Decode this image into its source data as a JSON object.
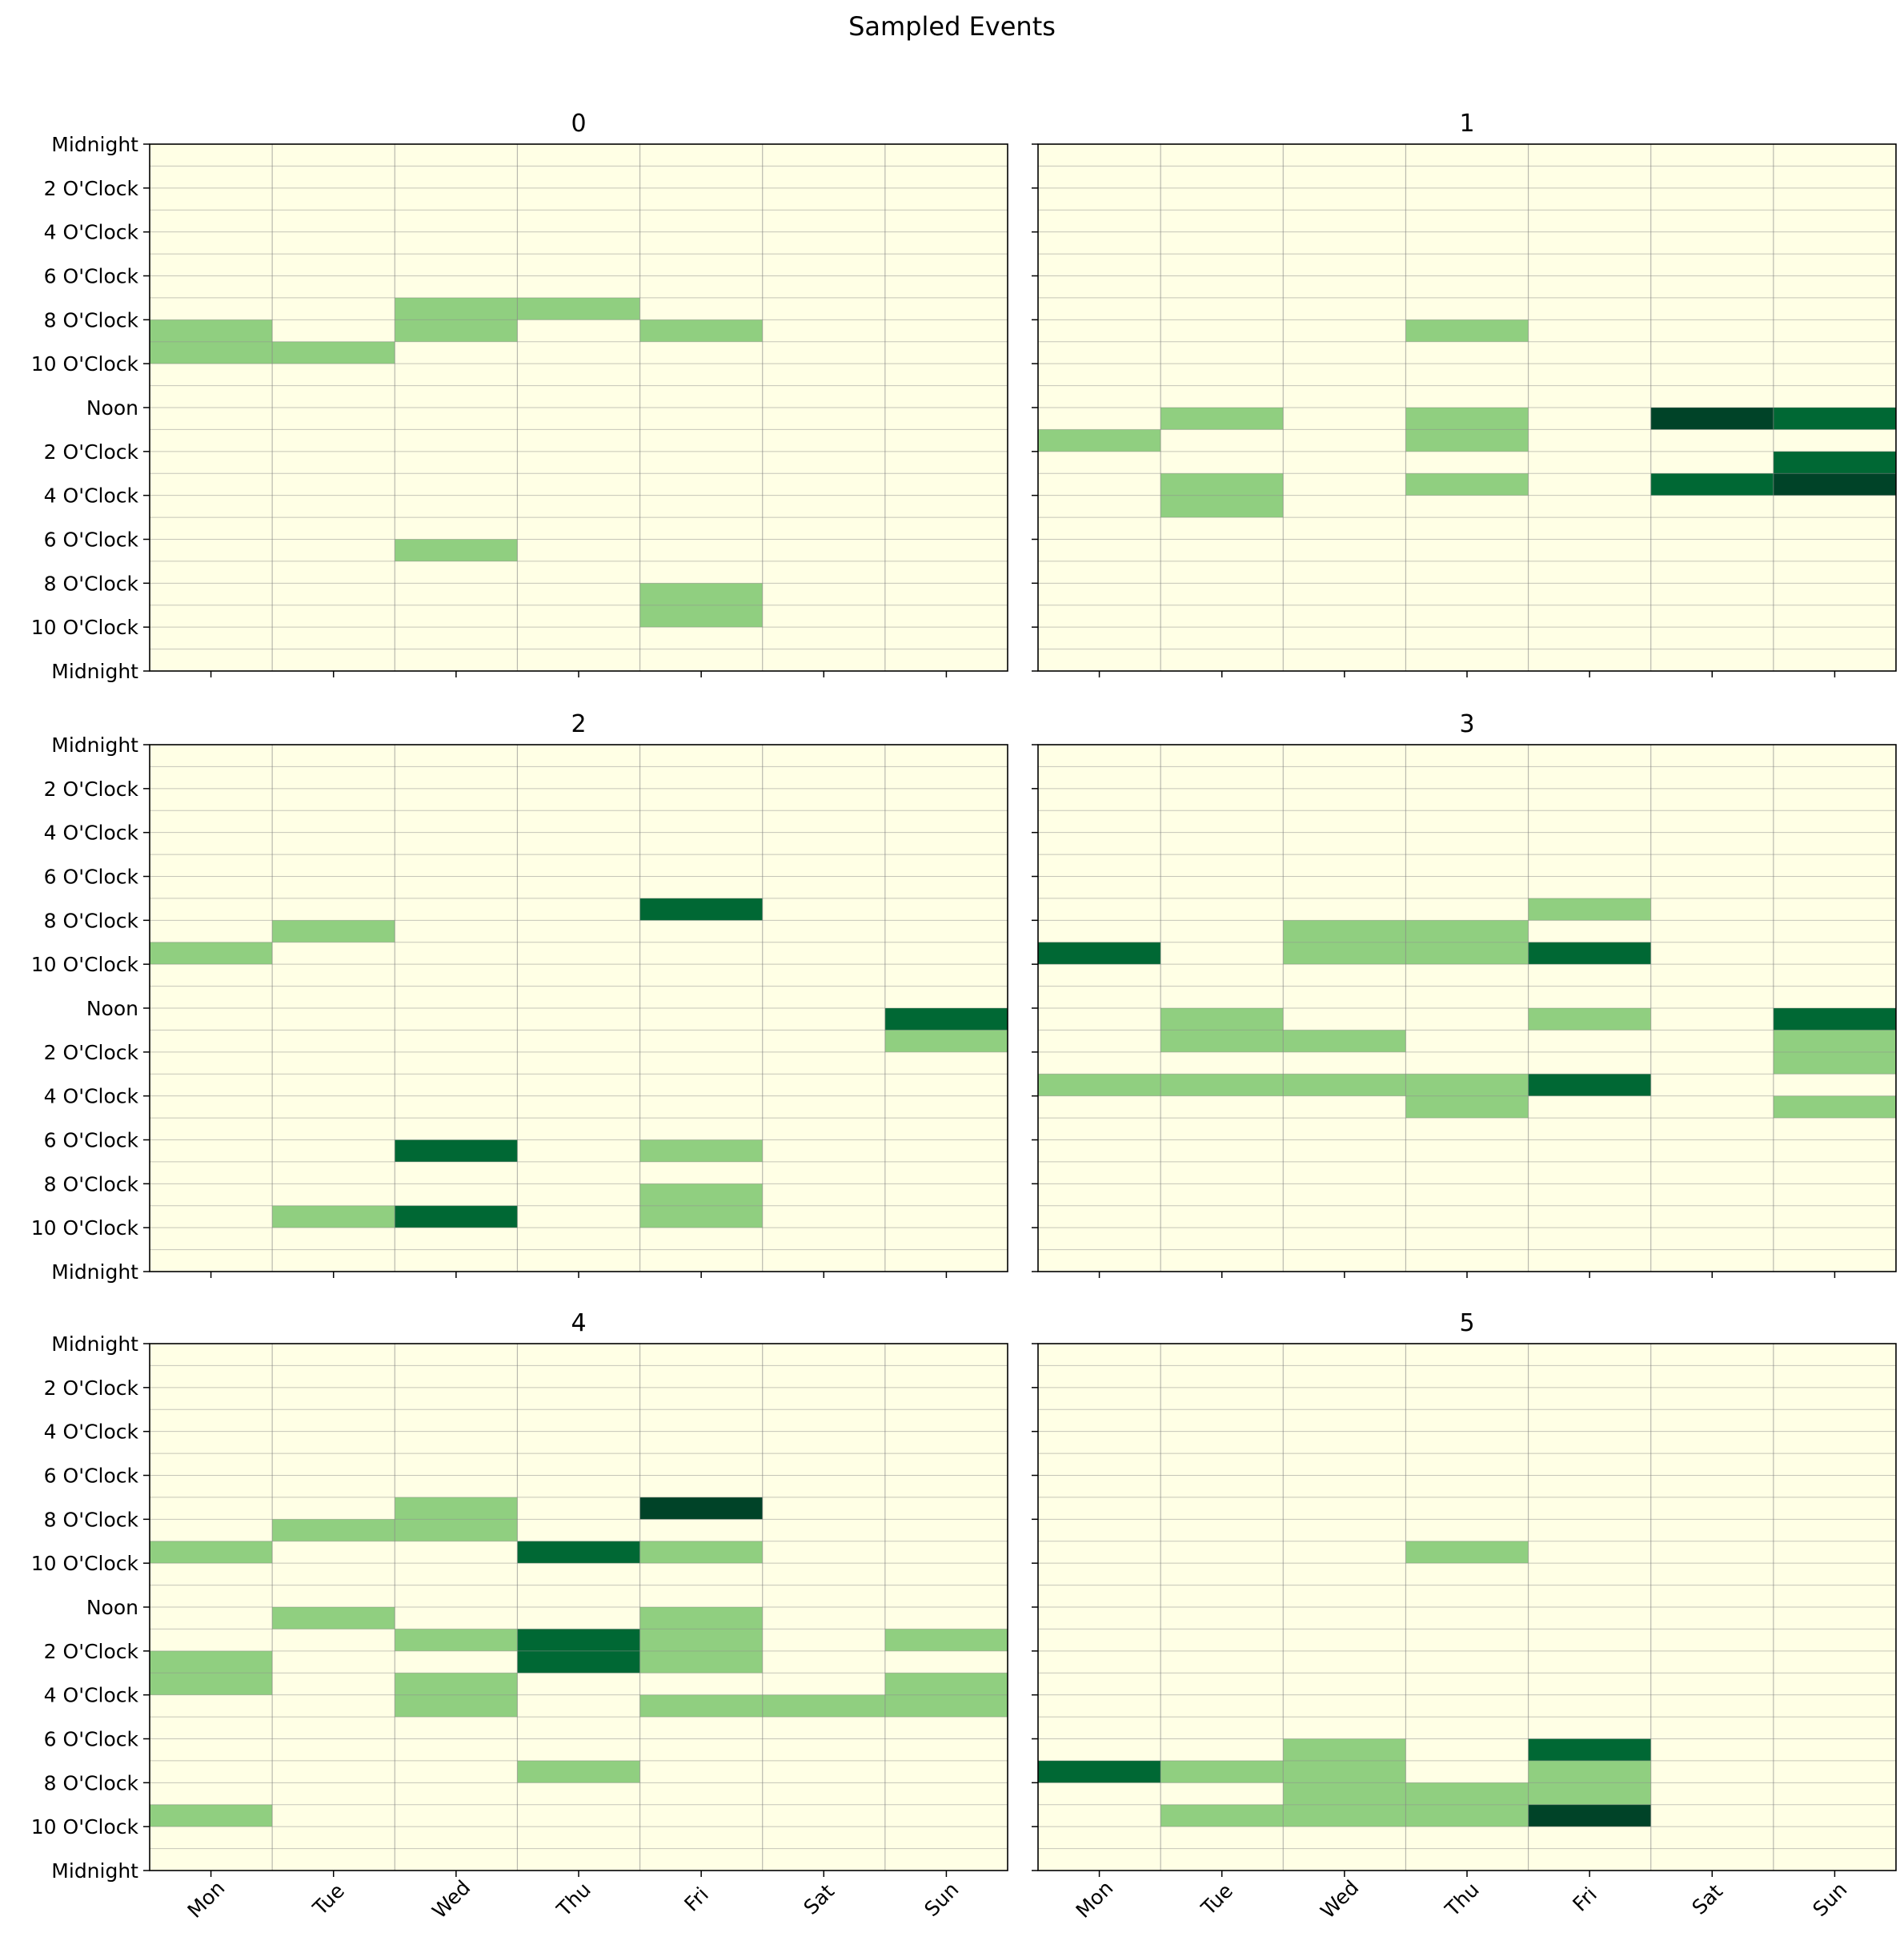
{
  "title": "Sampled Events",
  "chart_data": {
    "type": "heatmap",
    "title": "Sampled Events",
    "days": [
      "Mon",
      "Tue",
      "Wed",
      "Thu",
      "Fri",
      "Sat",
      "Sun"
    ],
    "hour_ticks": [
      "Midnight",
      "2 O'Clock",
      "4 O'Clock",
      "6 O'Clock",
      "8 O'Clock",
      "10 O'Clock",
      "Noon",
      "2 O'Clock",
      "4 O'Clock",
      "6 O'Clock",
      "8 O'Clock",
      "10 O'Clock",
      "Midnight"
    ],
    "hours_per_day": 24,
    "colormap": "Greens",
    "colors": {
      "background": "#ffffe5",
      "level_1": "#90cf80",
      "level_2": "#006834",
      "level_3": "#004328",
      "grid": "#808080"
    },
    "grid": true,
    "panels": [
      {
        "title": "0",
        "events": [
          {
            "day": "Mon",
            "hour": 8,
            "count": 1
          },
          {
            "day": "Mon",
            "hour": 9,
            "count": 1
          },
          {
            "day": "Tue",
            "hour": 9,
            "count": 1
          },
          {
            "day": "Wed",
            "hour": 7,
            "count": 1
          },
          {
            "day": "Wed",
            "hour": 8,
            "count": 1
          },
          {
            "day": "Wed",
            "hour": 18,
            "count": 1
          },
          {
            "day": "Thu",
            "hour": 7,
            "count": 1
          },
          {
            "day": "Fri",
            "hour": 8,
            "count": 1
          },
          {
            "day": "Fri",
            "hour": 20,
            "count": 1
          },
          {
            "day": "Fri",
            "hour": 21,
            "count": 1
          }
        ]
      },
      {
        "title": "1",
        "events": [
          {
            "day": "Mon",
            "hour": 13,
            "count": 1
          },
          {
            "day": "Tue",
            "hour": 12,
            "count": 1
          },
          {
            "day": "Tue",
            "hour": 15,
            "count": 1
          },
          {
            "day": "Tue",
            "hour": 16,
            "count": 1
          },
          {
            "day": "Thu",
            "hour": 8,
            "count": 1
          },
          {
            "day": "Thu",
            "hour": 12,
            "count": 1
          },
          {
            "day": "Thu",
            "hour": 13,
            "count": 1
          },
          {
            "day": "Thu",
            "hour": 15,
            "count": 1
          },
          {
            "day": "Sat",
            "hour": 12,
            "count": 3
          },
          {
            "day": "Sat",
            "hour": 15,
            "count": 2
          },
          {
            "day": "Sun",
            "hour": 12,
            "count": 2
          },
          {
            "day": "Sun",
            "hour": 14,
            "count": 2
          },
          {
            "day": "Sun",
            "hour": 15,
            "count": 3
          }
        ]
      },
      {
        "title": "2",
        "events": [
          {
            "day": "Mon",
            "hour": 9,
            "count": 1
          },
          {
            "day": "Tue",
            "hour": 8,
            "count": 1
          },
          {
            "day": "Tue",
            "hour": 21,
            "count": 1
          },
          {
            "day": "Wed",
            "hour": 18,
            "count": 2
          },
          {
            "day": "Wed",
            "hour": 21,
            "count": 2
          },
          {
            "day": "Fri",
            "hour": 7,
            "count": 2
          },
          {
            "day": "Fri",
            "hour": 18,
            "count": 1
          },
          {
            "day": "Fri",
            "hour": 20,
            "count": 1
          },
          {
            "day": "Fri",
            "hour": 21,
            "count": 1
          },
          {
            "day": "Sun",
            "hour": 12,
            "count": 2
          },
          {
            "day": "Sun",
            "hour": 13,
            "count": 1
          }
        ]
      },
      {
        "title": "3",
        "events": [
          {
            "day": "Mon",
            "hour": 9,
            "count": 2
          },
          {
            "day": "Mon",
            "hour": 15,
            "count": 1
          },
          {
            "day": "Tue",
            "hour": 12,
            "count": 1
          },
          {
            "day": "Tue",
            "hour": 13,
            "count": 1
          },
          {
            "day": "Tue",
            "hour": 15,
            "count": 1
          },
          {
            "day": "Wed",
            "hour": 8,
            "count": 1
          },
          {
            "day": "Wed",
            "hour": 9,
            "count": 1
          },
          {
            "day": "Wed",
            "hour": 13,
            "count": 1
          },
          {
            "day": "Wed",
            "hour": 15,
            "count": 1
          },
          {
            "day": "Thu",
            "hour": 8,
            "count": 1
          },
          {
            "day": "Thu",
            "hour": 9,
            "count": 1
          },
          {
            "day": "Thu",
            "hour": 15,
            "count": 1
          },
          {
            "day": "Thu",
            "hour": 16,
            "count": 1
          },
          {
            "day": "Fri",
            "hour": 7,
            "count": 1
          },
          {
            "day": "Fri",
            "hour": 9,
            "count": 2
          },
          {
            "day": "Fri",
            "hour": 12,
            "count": 1
          },
          {
            "day": "Fri",
            "hour": 15,
            "count": 2
          },
          {
            "day": "Sun",
            "hour": 12,
            "count": 2
          },
          {
            "day": "Sun",
            "hour": 13,
            "count": 1
          },
          {
            "day": "Sun",
            "hour": 14,
            "count": 1
          },
          {
            "day": "Sun",
            "hour": 16,
            "count": 1
          }
        ]
      },
      {
        "title": "4",
        "events": [
          {
            "day": "Mon",
            "hour": 9,
            "count": 1
          },
          {
            "day": "Mon",
            "hour": 14,
            "count": 1
          },
          {
            "day": "Mon",
            "hour": 15,
            "count": 1
          },
          {
            "day": "Mon",
            "hour": 21,
            "count": 1
          },
          {
            "day": "Tue",
            "hour": 8,
            "count": 1
          },
          {
            "day": "Tue",
            "hour": 12,
            "count": 1
          },
          {
            "day": "Wed",
            "hour": 7,
            "count": 1
          },
          {
            "day": "Wed",
            "hour": 8,
            "count": 1
          },
          {
            "day": "Wed",
            "hour": 13,
            "count": 1
          },
          {
            "day": "Wed",
            "hour": 15,
            "count": 1
          },
          {
            "day": "Wed",
            "hour": 16,
            "count": 1
          },
          {
            "day": "Thu",
            "hour": 9,
            "count": 2
          },
          {
            "day": "Thu",
            "hour": 13,
            "count": 2
          },
          {
            "day": "Thu",
            "hour": 14,
            "count": 2
          },
          {
            "day": "Thu",
            "hour": 19,
            "count": 1
          },
          {
            "day": "Fri",
            "hour": 7,
            "count": 3
          },
          {
            "day": "Fri",
            "hour": 9,
            "count": 1
          },
          {
            "day": "Fri",
            "hour": 12,
            "count": 1
          },
          {
            "day": "Fri",
            "hour": 13,
            "count": 1
          },
          {
            "day": "Fri",
            "hour": 14,
            "count": 1
          },
          {
            "day": "Fri",
            "hour": 16,
            "count": 1
          },
          {
            "day": "Sat",
            "hour": 16,
            "count": 1
          },
          {
            "day": "Sun",
            "hour": 13,
            "count": 1
          },
          {
            "day": "Sun",
            "hour": 15,
            "count": 1
          },
          {
            "day": "Sun",
            "hour": 16,
            "count": 1
          }
        ]
      },
      {
        "title": "5",
        "events": [
          {
            "day": "Mon",
            "hour": 19,
            "count": 2
          },
          {
            "day": "Tue",
            "hour": 19,
            "count": 1
          },
          {
            "day": "Tue",
            "hour": 21,
            "count": 1
          },
          {
            "day": "Wed",
            "hour": 18,
            "count": 1
          },
          {
            "day": "Wed",
            "hour": 19,
            "count": 1
          },
          {
            "day": "Wed",
            "hour": 20,
            "count": 1
          },
          {
            "day": "Wed",
            "hour": 21,
            "count": 1
          },
          {
            "day": "Thu",
            "hour": 9,
            "count": 1
          },
          {
            "day": "Thu",
            "hour": 20,
            "count": 1
          },
          {
            "day": "Thu",
            "hour": 21,
            "count": 1
          },
          {
            "day": "Fri",
            "hour": 18,
            "count": 2
          },
          {
            "day": "Fri",
            "hour": 19,
            "count": 1
          },
          {
            "day": "Fri",
            "hour": 20,
            "count": 1
          },
          {
            "day": "Fri",
            "hour": 21,
            "count": 3
          }
        ]
      }
    ]
  }
}
